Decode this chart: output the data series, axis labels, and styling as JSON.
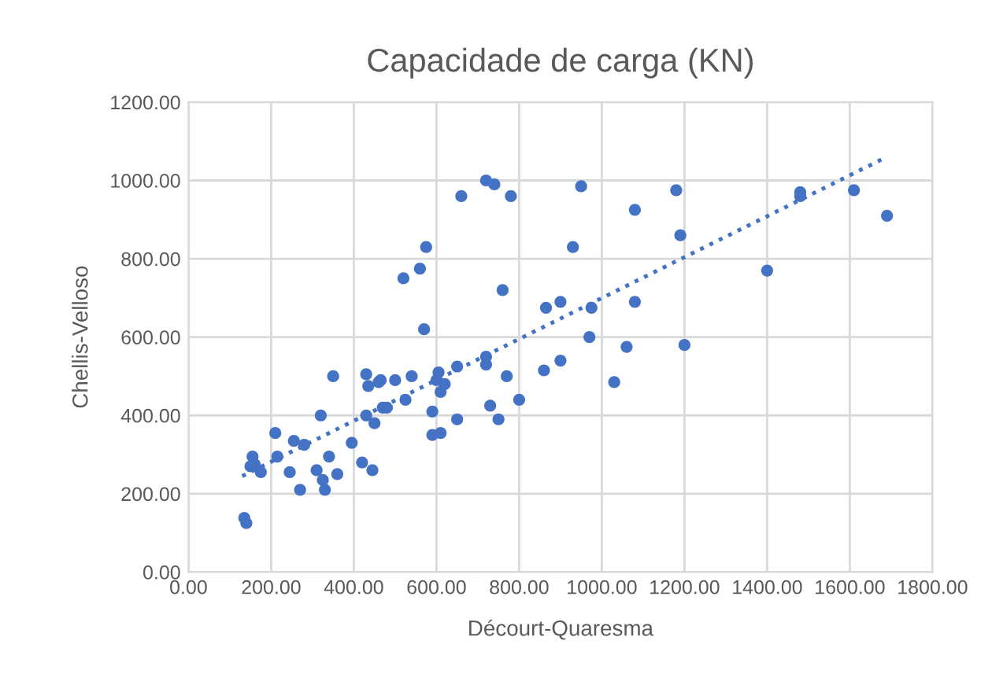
{
  "chart_data": {
    "type": "scatter",
    "title": "Capacidade de carga (KN)",
    "xlabel": "Décourt-Quaresma",
    "ylabel": "Chellis-Velloso",
    "xlim": [
      0,
      1800
    ],
    "ylim": [
      0,
      1200
    ],
    "xticks": [
      {
        "value": 0,
        "label": "0.00"
      },
      {
        "value": 200,
        "label": "200.00"
      },
      {
        "value": 400,
        "label": "400.00"
      },
      {
        "value": 600,
        "label": "600.00"
      },
      {
        "value": 800,
        "label": "800.00"
      },
      {
        "value": 1000,
        "label": "1000.00"
      },
      {
        "value": 1200,
        "label": "1200.00"
      },
      {
        "value": 1400,
        "label": "1400.00"
      },
      {
        "value": 1600,
        "label": "1600.00"
      },
      {
        "value": 1800,
        "label": "1800.00"
      }
    ],
    "yticks": [
      {
        "value": 0,
        "label": "0.00"
      },
      {
        "value": 200,
        "label": "200.00"
      },
      {
        "value": 400,
        "label": "400.00"
      },
      {
        "value": 600,
        "label": "600.00"
      },
      {
        "value": 800,
        "label": "800.00"
      },
      {
        "value": 1000,
        "label": "1000.00"
      },
      {
        "value": 1200,
        "label": "1200.00"
      }
    ],
    "grid": true,
    "legend": false,
    "series": [
      {
        "color": "#4472c4",
        "marker": "circle",
        "x": [
          135,
          140,
          155,
          160,
          150,
          175,
          210,
          215,
          245,
          255,
          270,
          280,
          320,
          310,
          325,
          330,
          340,
          350,
          360,
          395,
          420,
          430,
          430,
          435,
          445,
          450,
          465,
          470,
          480,
          460,
          500,
          520,
          540,
          525,
          560,
          570,
          575,
          590,
          590,
          600,
          605,
          610,
          620,
          610,
          650,
          650,
          660,
          720,
          720,
          720,
          730,
          740,
          750,
          760,
          770,
          780,
          800,
          865,
          900,
          860,
          900,
          930,
          950,
          970,
          975,
          1030,
          1060,
          1080,
          1080,
          1180,
          1190,
          1200,
          1400,
          1480,
          1480,
          1610,
          1690
        ],
        "values": [
          138,
          125,
          295,
          275,
          270,
          255,
          355,
          295,
          255,
          335,
          210,
          325,
          400,
          260,
          235,
          210,
          295,
          500,
          250,
          330,
          280,
          400,
          505,
          475,
          260,
          380,
          490,
          420,
          420,
          485,
          490,
          750,
          500,
          440,
          775,
          620,
          830,
          350,
          410,
          490,
          510,
          460,
          480,
          355,
          525,
          390,
          960,
          550,
          530,
          1000,
          425,
          990,
          390,
          720,
          500,
          960,
          440,
          675,
          690,
          515,
          540,
          830,
          985,
          600,
          675,
          485,
          575,
          690,
          925,
          975,
          860,
          580,
          770,
          960,
          970,
          975,
          910
        ]
      },
      {
        "type": "line",
        "color": "#4472c4",
        "line_style": "dotted",
        "x": [
          130,
          1680
        ],
        "values": [
          245,
          1055
        ]
      }
    ]
  }
}
